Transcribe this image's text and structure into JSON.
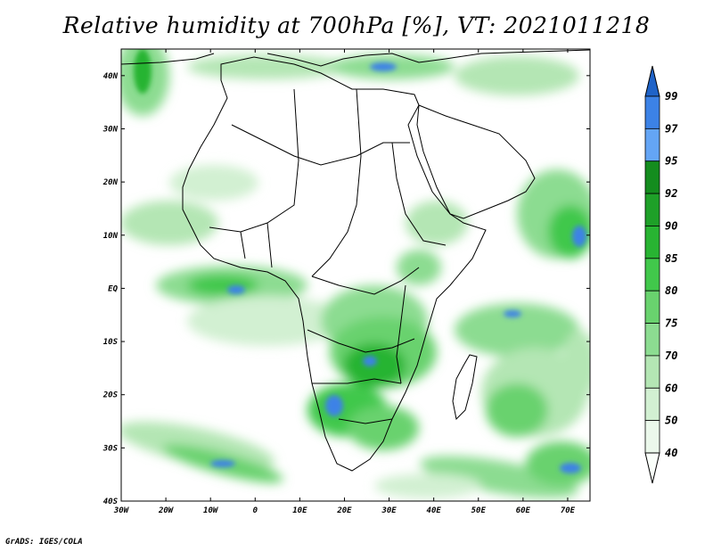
{
  "title": "Relative humidity at 700hPa [%], VT: 2021011218",
  "credit": "GrADS: IGES/COLA",
  "map": {
    "lon_labels": [
      "30W",
      "20W",
      "10W",
      "0",
      "10E",
      "20E",
      "30E",
      "40E",
      "50E",
      "60E",
      "70E"
    ],
    "lat_labels": [
      "40N",
      "30N",
      "20N",
      "10N",
      "EQ",
      "10S",
      "20S",
      "30S",
      "40S"
    ],
    "lon_range": [
      -30,
      75
    ],
    "lat_range": [
      -40,
      45
    ]
  },
  "colorbar": {
    "labels": [
      "99",
      "97",
      "95",
      "92",
      "90",
      "85",
      "80",
      "75",
      "70",
      "60",
      "50",
      "40"
    ],
    "colors": [
      "#1f63c8",
      "#3c82e6",
      "#64a5f5",
      "#148c1e",
      "#1ea028",
      "#28b432",
      "#41c84b",
      "#69d26e",
      "#8cdc91",
      "#b4e6b4",
      "#d2f0d2",
      "#ebf8eb",
      "#fafffa"
    ]
  }
}
